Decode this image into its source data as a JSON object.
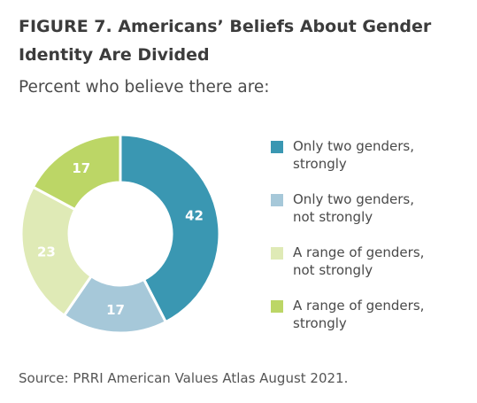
{
  "title": "FIGURE 7. Americans’ Beliefs About Gender Identity Are Divided",
  "subtitle": "Percent who believe there are:",
  "source": "Source: PRRI American Values Atlas August 2021.",
  "chart_data": {
    "type": "pie",
    "title": "FIGURE 7. Americans’ Beliefs About Gender Identity Are Divided",
    "subtitle": "Percent who believe there are:",
    "donut": true,
    "start": "12 o'clock, clockwise",
    "legend_position": "right",
    "categories": [
      "Only two genders, strongly",
      "Only two genders, not strongly",
      "A range of genders, not strongly",
      "A range of genders, strongly"
    ],
    "legend_lines": [
      [
        "Only two genders,",
        "strongly"
      ],
      [
        "Only two genders,",
        "not strongly"
      ],
      [
        "A range of genders,",
        "not strongly"
      ],
      [
        "A range of genders,",
        "strongly"
      ]
    ],
    "values": [
      42,
      17,
      23,
      17
    ],
    "colors": [
      "#3a97b2",
      "#a6c8d9",
      "#dfeab6",
      "#bcd666"
    ]
  }
}
